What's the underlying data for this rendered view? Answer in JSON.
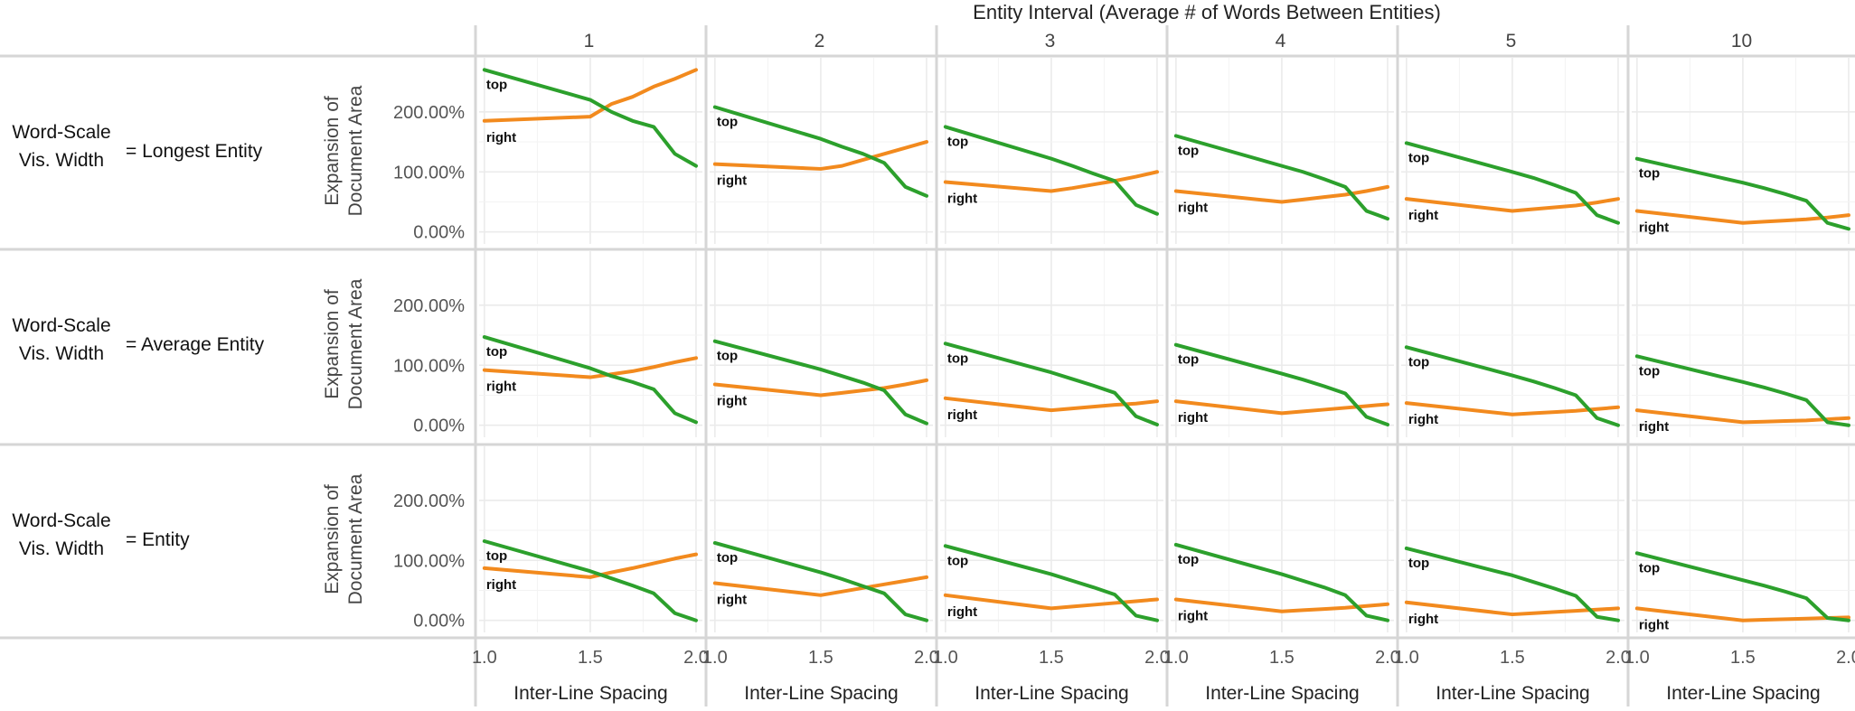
{
  "chart_data": {
    "type": "line",
    "title": "Entity Interval (Average # of Words Between Entities)",
    "xlabel": "Inter-Line Spacing",
    "ylabel_line1": "Expansion of",
    "ylabel_line2": "Document Area",
    "x_ticks": [
      "1.0",
      "1.5",
      "2.0"
    ],
    "x_tick_values": [
      1.0,
      1.5,
      2.0
    ],
    "xlim": [
      0.975,
      2.03
    ],
    "y_ticks": [
      "0.00%",
      "100.00%",
      "200.00%"
    ],
    "y_tick_values": [
      0,
      100,
      200
    ],
    "ylim": [
      -20,
      290
    ],
    "grid": true,
    "row_label_prefix_line1": "Word-Scale",
    "row_label_prefix_line2": "Vis. Width",
    "columns": [
      "1",
      "2",
      "3",
      "4",
      "5",
      "10"
    ],
    "rows": [
      "= Longest Entity",
      "= Average Entity",
      "= Entity"
    ],
    "colors": {
      "top": "#2ca02c",
      "right": "#f28a1e"
    },
    "series_names": [
      "top",
      "right"
    ],
    "x": [
      1.0,
      1.5,
      1.6,
      1.7,
      1.8,
      1.9,
      2.0
    ],
    "panels": [
      [
        {
          "top": [
            270,
            220,
            200,
            185,
            175,
            130,
            110
          ],
          "right": [
            185,
            192,
            213,
            225,
            242,
            255,
            270
          ]
        },
        {
          "top": [
            208,
            155,
            142,
            130,
            115,
            75,
            60
          ],
          "right": [
            113,
            105,
            110,
            120,
            130,
            140,
            150
          ]
        },
        {
          "top": [
            175,
            122,
            110,
            97,
            85,
            45,
            30
          ],
          "right": [
            83,
            68,
            73,
            79,
            85,
            92,
            100
          ]
        },
        {
          "top": [
            160,
            110,
            100,
            88,
            75,
            35,
            22
          ],
          "right": [
            68,
            50,
            54,
            58,
            62,
            68,
            75
          ]
        },
        {
          "top": [
            148,
            100,
            90,
            78,
            65,
            28,
            15
          ],
          "right": [
            55,
            35,
            38,
            41,
            44,
            49,
            55
          ]
        },
        {
          "top": [
            122,
            82,
            73,
            63,
            52,
            15,
            5
          ],
          "right": [
            35,
            15,
            17,
            19,
            21,
            24,
            28
          ]
        }
      ],
      [
        {
          "top": [
            147,
            95,
            82,
            72,
            60,
            20,
            5
          ],
          "right": [
            92,
            80,
            85,
            90,
            97,
            105,
            112
          ]
        },
        {
          "top": [
            140,
            93,
            82,
            71,
            58,
            18,
            3
          ],
          "right": [
            68,
            50,
            54,
            58,
            62,
            68,
            75
          ]
        },
        {
          "top": [
            136,
            88,
            77,
            66,
            54,
            15,
            1
          ],
          "right": [
            45,
            25,
            28,
            31,
            34,
            36,
            40
          ]
        },
        {
          "top": [
            134,
            86,
            76,
            65,
            53,
            14,
            1
          ],
          "right": [
            40,
            20,
            23,
            26,
            29,
            32,
            35
          ]
        },
        {
          "top": [
            130,
            83,
            73,
            62,
            50,
            12,
            0
          ],
          "right": [
            37,
            18,
            20,
            22,
            24,
            27,
            30
          ]
        },
        {
          "top": [
            115,
            72,
            63,
            53,
            42,
            5,
            0
          ],
          "right": [
            25,
            5,
            6,
            7,
            8,
            10,
            12
          ]
        }
      ],
      [
        {
          "top": [
            132,
            82,
            70,
            58,
            45,
            12,
            0
          ],
          "right": [
            87,
            72,
            80,
            87,
            95,
            103,
            110
          ]
        },
        {
          "top": [
            129,
            80,
            69,
            57,
            45,
            10,
            0
          ],
          "right": [
            62,
            42,
            48,
            54,
            60,
            66,
            72
          ]
        },
        {
          "top": [
            124,
            77,
            66,
            55,
            43,
            8,
            0
          ],
          "right": [
            42,
            20,
            23,
            26,
            29,
            32,
            35
          ]
        },
        {
          "top": [
            126,
            77,
            66,
            55,
            42,
            8,
            0
          ],
          "right": [
            35,
            15,
            17,
            19,
            21,
            24,
            27
          ]
        },
        {
          "top": [
            120,
            75,
            64,
            53,
            41,
            6,
            0
          ],
          "right": [
            30,
            10,
            12,
            14,
            16,
            18,
            20
          ]
        },
        {
          "top": [
            112,
            67,
            58,
            48,
            37,
            4,
            0
          ],
          "right": [
            20,
            0,
            1,
            2,
            3,
            4,
            5
          ]
        }
      ]
    ]
  }
}
